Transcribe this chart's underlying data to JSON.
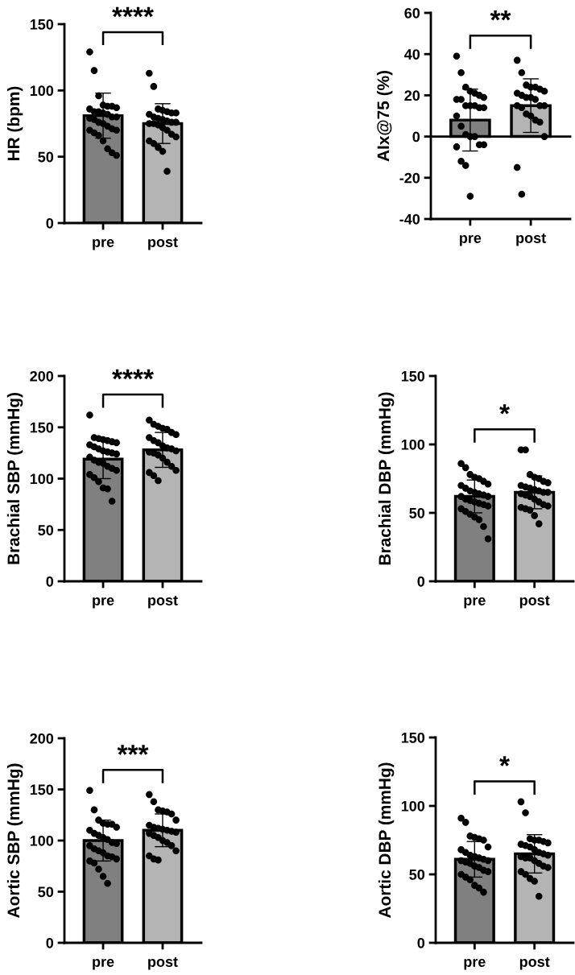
{
  "chart_data": [
    {
      "type": "bar",
      "categories": [
        "pre",
        "post"
      ],
      "ylabel": "HR (bpm)",
      "ylim": [
        0,
        150
      ],
      "yticks": [
        0,
        50,
        100,
        150
      ],
      "annotations": [
        "****"
      ],
      "legend": false,
      "series": [
        {
          "type": "bar",
          "values": [
            81,
            75
          ],
          "errors": [
            17,
            15
          ],
          "colors": [
            "#808080",
            "#b4b4b4"
          ]
        },
        {
          "type": "scatter",
          "color": "#000000",
          "x": [
            "pre",
            "pre",
            "pre",
            "pre",
            "pre",
            "pre",
            "pre",
            "pre",
            "pre",
            "pre",
            "pre",
            "pre",
            "pre",
            "pre",
            "pre",
            "pre",
            "pre",
            "pre",
            "pre",
            "pre",
            "pre",
            "pre",
            "pre",
            "pre",
            "pre",
            "pre",
            "pre",
            "pre",
            "post",
            "post",
            "post",
            "post",
            "post",
            "post",
            "post",
            "post",
            "post",
            "post",
            "post",
            "post",
            "post",
            "post",
            "post",
            "post",
            "post",
            "post",
            "post",
            "post",
            "post",
            "post",
            "post",
            "post",
            "post",
            "post"
          ],
          "values": [
            129,
            115,
            96,
            89,
            88,
            88,
            87,
            86,
            84,
            84,
            83,
            82,
            80,
            80,
            79,
            78,
            76,
            75,
            73,
            71,
            70,
            70,
            68,
            66,
            62,
            56,
            53,
            51,
            113,
            103,
            86,
            85,
            84,
            83,
            83,
            82,
            80,
            79,
            78,
            77,
            76,
            76,
            75,
            75,
            74,
            72,
            70,
            67,
            65,
            62,
            60,
            57,
            54,
            39
          ]
        }
      ]
    },
    {
      "type": "bar",
      "categories": [
        "pre",
        "post"
      ],
      "ylabel": "AIx@75 (%)",
      "ylim": [
        -40,
        60
      ],
      "yticks": [
        -40,
        -20,
        0,
        20,
        40,
        60
      ],
      "annotations": [
        "**"
      ],
      "legend": false,
      "series": [
        {
          "type": "bar",
          "values": [
            8,
            15
          ],
          "errors": [
            15,
            13
          ],
          "colors": [
            "#808080",
            "#b4b4b4"
          ]
        },
        {
          "type": "scatter",
          "color": "#000000",
          "x": [
            "pre",
            "pre",
            "pre",
            "pre",
            "pre",
            "pre",
            "pre",
            "pre",
            "pre",
            "pre",
            "pre",
            "pre",
            "pre",
            "pre",
            "pre",
            "pre",
            "pre",
            "pre",
            "pre",
            "pre",
            "pre",
            "pre",
            "pre",
            "pre",
            "pre",
            "post",
            "post",
            "post",
            "post",
            "post",
            "post",
            "post",
            "post",
            "post",
            "post",
            "post",
            "post",
            "post",
            "post",
            "post",
            "post",
            "post",
            "post",
            "post",
            "post",
            "post",
            "post",
            "post"
          ],
          "values": [
            39,
            31,
            24,
            22,
            21,
            20,
            19,
            18,
            18,
            15,
            15,
            15,
            14,
            14,
            10,
            5,
            1,
            0,
            0,
            -4,
            -4,
            -5,
            -12,
            -14,
            -29,
            37,
            31,
            25,
            24,
            24,
            23,
            22,
            21,
            20,
            19,
            19,
            18,
            15,
            15,
            15,
            14,
            11,
            10,
            8,
            7,
            0,
            -15,
            -28
          ]
        }
      ]
    },
    {
      "type": "bar",
      "categories": [
        "pre",
        "post"
      ],
      "ylabel": "Brachial SBP (mmHg)",
      "ylim": [
        0,
        200
      ],
      "yticks": [
        0,
        50,
        100,
        150,
        200
      ],
      "annotations": [
        "****"
      ],
      "legend": false,
      "series": [
        {
          "type": "bar",
          "values": [
            119,
            128
          ],
          "errors": [
            19,
            17
          ],
          "colors": [
            "#808080",
            "#b4b4b4"
          ]
        },
        {
          "type": "scatter",
          "color": "#000000",
          "x": [
            "pre",
            "pre",
            "pre",
            "pre",
            "pre",
            "pre",
            "pre",
            "pre",
            "pre",
            "pre",
            "pre",
            "pre",
            "pre",
            "pre",
            "pre",
            "pre",
            "pre",
            "pre",
            "pre",
            "pre",
            "pre",
            "pre",
            "pre",
            "pre",
            "pre",
            "pre",
            "pre",
            "post",
            "post",
            "post",
            "post",
            "post",
            "post",
            "post",
            "post",
            "post",
            "post",
            "post",
            "post",
            "post",
            "post",
            "post",
            "post",
            "post",
            "post",
            "post",
            "post",
            "post",
            "post",
            "post",
            "post"
          ],
          "values": [
            162,
            140,
            139,
            138,
            137,
            136,
            135,
            133,
            131,
            129,
            127,
            126,
            125,
            124,
            121,
            118,
            116,
            115,
            112,
            110,
            108,
            104,
            101,
            97,
            91,
            90,
            78,
            157,
            153,
            151,
            149,
            148,
            145,
            143,
            140,
            137,
            135,
            132,
            130,
            129,
            127,
            126,
            125,
            123,
            120,
            116,
            112,
            108,
            106,
            103,
            98
          ]
        }
      ]
    },
    {
      "type": "bar",
      "categories": [
        "pre",
        "post"
      ],
      "ylabel": "Brachial DBP (mmHg)",
      "ylim": [
        0,
        150
      ],
      "yticks": [
        0,
        50,
        100,
        150
      ],
      "annotations": [
        "*"
      ],
      "legend": false,
      "series": [
        {
          "type": "bar",
          "values": [
            62,
            65
          ],
          "errors": [
            12,
            12
          ],
          "colors": [
            "#808080",
            "#b4b4b4"
          ]
        },
        {
          "type": "scatter",
          "color": "#000000",
          "x": [
            "pre",
            "pre",
            "pre",
            "pre",
            "pre",
            "pre",
            "pre",
            "pre",
            "pre",
            "pre",
            "pre",
            "pre",
            "pre",
            "pre",
            "pre",
            "pre",
            "pre",
            "pre",
            "pre",
            "pre",
            "pre",
            "pre",
            "pre",
            "pre",
            "pre",
            "pre",
            "pre",
            "pre",
            "post",
            "post",
            "post",
            "post",
            "post",
            "post",
            "post",
            "post",
            "post",
            "post",
            "post",
            "post",
            "post",
            "post",
            "post",
            "post",
            "post",
            "post",
            "post",
            "post",
            "post",
            "post",
            "post",
            "post",
            "post",
            "post"
          ],
          "values": [
            86,
            83,
            78,
            76,
            75,
            73,
            71,
            70,
            68,
            66,
            65,
            64,
            63,
            62,
            62,
            60,
            59,
            58,
            57,
            56,
            55,
            53,
            51,
            49,
            47,
            45,
            40,
            31,
            96,
            96,
            78,
            76,
            75,
            73,
            72,
            70,
            69,
            68,
            67,
            66,
            65,
            65,
            64,
            63,
            62,
            60,
            58,
            56,
            55,
            54,
            53,
            52,
            48,
            42
          ]
        }
      ]
    },
    {
      "type": "bar",
      "categories": [
        "pre",
        "post"
      ],
      "ylabel": "Aortic SBP (mmHg)",
      "ylim": [
        0,
        200
      ],
      "yticks": [
        0,
        50,
        100,
        150,
        200
      ],
      "annotations": [
        "***"
      ],
      "legend": false,
      "series": [
        {
          "type": "bar",
          "values": [
            100,
            110
          ],
          "errors": [
            20,
            16
          ],
          "colors": [
            "#808080",
            "#b4b4b4"
          ]
        },
        {
          "type": "scatter",
          "color": "#000000",
          "x": [
            "pre",
            "pre",
            "pre",
            "pre",
            "pre",
            "pre",
            "pre",
            "pre",
            "pre",
            "pre",
            "pre",
            "pre",
            "pre",
            "pre",
            "pre",
            "pre",
            "pre",
            "pre",
            "pre",
            "pre",
            "pre",
            "pre",
            "pre",
            "pre",
            "pre",
            "pre",
            "post",
            "post",
            "post",
            "post",
            "post",
            "post",
            "post",
            "post",
            "post",
            "post",
            "post",
            "post",
            "post",
            "post",
            "post",
            "post",
            "post",
            "post",
            "post",
            "post",
            "post",
            "post",
            "post",
            "post"
          ],
          "values": [
            149,
            130,
            120,
            117,
            116,
            116,
            113,
            110,
            107,
            105,
            103,
            101,
            98,
            97,
            95,
            92,
            90,
            88,
            85,
            84,
            82,
            80,
            78,
            72,
            65,
            58,
            145,
            138,
            130,
            129,
            128,
            126,
            120,
            115,
            113,
            112,
            111,
            110,
            109,
            108,
            107,
            105,
            103,
            100,
            98,
            95,
            90,
            85,
            82,
            81
          ]
        }
      ]
    },
    {
      "type": "bar",
      "categories": [
        "pre",
        "post"
      ],
      "ylabel": "Aortic DBP (mmHg)",
      "ylim": [
        0,
        150
      ],
      "yticks": [
        0,
        50,
        100,
        150
      ],
      "annotations": [
        "*"
      ],
      "legend": false,
      "series": [
        {
          "type": "bar",
          "values": [
            61,
            65
          ],
          "errors": [
            13,
            14
          ],
          "colors": [
            "#808080",
            "#b4b4b4"
          ]
        },
        {
          "type": "scatter",
          "color": "#000000",
          "x": [
            "pre",
            "pre",
            "pre",
            "pre",
            "pre",
            "pre",
            "pre",
            "pre",
            "pre",
            "pre",
            "pre",
            "pre",
            "pre",
            "pre",
            "pre",
            "pre",
            "pre",
            "pre",
            "pre",
            "pre",
            "pre",
            "pre",
            "pre",
            "pre",
            "pre",
            "pre",
            "pre",
            "post",
            "post",
            "post",
            "post",
            "post",
            "post",
            "post",
            "post",
            "post",
            "post",
            "post",
            "post",
            "post",
            "post",
            "post",
            "post",
            "post",
            "post",
            "post",
            "post",
            "post",
            "post",
            "post",
            "post",
            "post",
            "post"
          ],
          "values": [
            91,
            88,
            78,
            77,
            76,
            75,
            70,
            68,
            66,
            64,
            63,
            62,
            61,
            60,
            60,
            59,
            58,
            56,
            55,
            53,
            52,
            50,
            48,
            46,
            42,
            40,
            37,
            103,
            95,
            76,
            75,
            75,
            74,
            73,
            72,
            71,
            70,
            68,
            66,
            65,
            64,
            63,
            62,
            62,
            60,
            58,
            56,
            55,
            52,
            50,
            47,
            45,
            34
          ]
        }
      ]
    }
  ]
}
